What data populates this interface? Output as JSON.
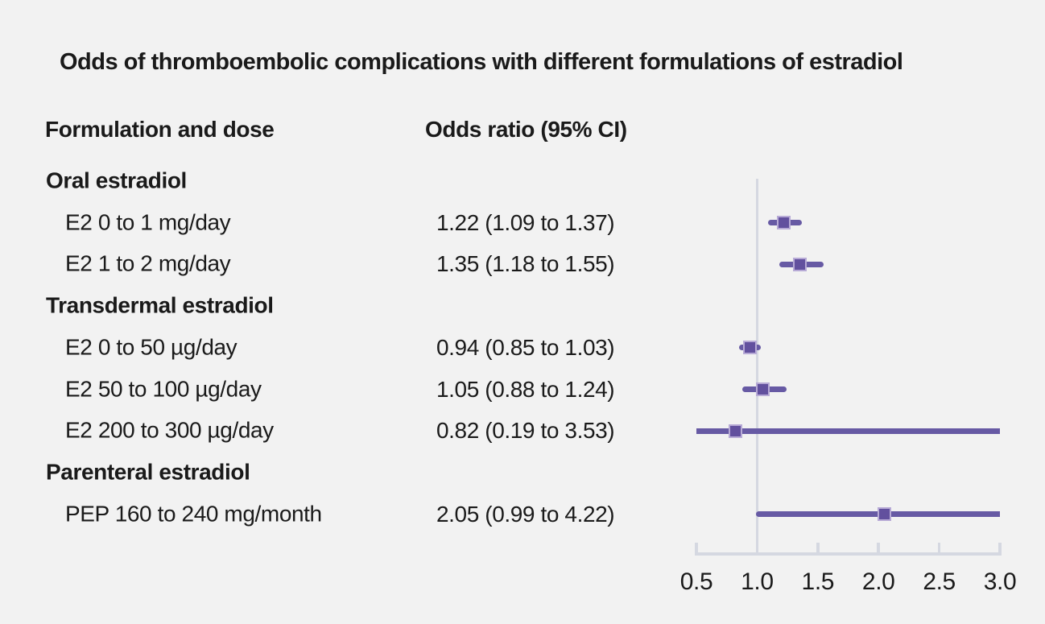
{
  "figure": {
    "title": "Odds of thromboembolic complications with different formulations of estradiol",
    "column_headers": {
      "formulation": "Formulation and dose",
      "odds_ratio": "Odds ratio (95% CI)"
    }
  },
  "colors": {
    "background": "#f2f2f2",
    "text": "#1a1a1a",
    "ci_line": "#675aa4",
    "marker_fill": "#62509e",
    "marker_border": "#b7aad6",
    "axis": "#d5d8e1"
  },
  "chart_data": {
    "type": "forest",
    "title": "Odds of thromboembolic complications with different formulations of estradiol",
    "xlabel": "",
    "x_axis": {
      "ticks": [
        0.5,
        1.0,
        1.5,
        2.0,
        2.5,
        3.0
      ],
      "range": [
        0.5,
        3.0
      ],
      "reference_line": 1.0,
      "grid": false
    },
    "groups": [
      {
        "label": "Oral estradiol",
        "items": [
          {
            "label": "E2 0 to 1 mg/day",
            "value_text": "1.22 (1.09 to 1.37)",
            "or": 1.22,
            "ci_low": 1.09,
            "ci_high": 1.37
          },
          {
            "label": "E2 1 to 2 mg/day",
            "value_text": "1.35 (1.18 to 1.55)",
            "or": 1.35,
            "ci_low": 1.18,
            "ci_high": 1.55
          }
        ]
      },
      {
        "label": "Transdermal estradiol",
        "items": [
          {
            "label": "E2 0 to 50 µg/day",
            "value_text": "0.94 (0.85 to 1.03)",
            "or": 0.94,
            "ci_low": 0.85,
            "ci_high": 1.03
          },
          {
            "label": "E2 50 to 100 µg/day",
            "value_text": "1.05 (0.88 to 1.24)",
            "or": 1.05,
            "ci_low": 0.88,
            "ci_high": 1.24
          },
          {
            "label": "E2 200 to 300 µg/day",
            "value_text": "0.82 (0.19 to 3.53)",
            "or": 0.82,
            "ci_low": 0.19,
            "ci_high": 3.53
          }
        ]
      },
      {
        "label": "Parenteral estradiol",
        "items": [
          {
            "label": "PEP 160 to 240 mg/month",
            "value_text": "2.05 (0.99 to 4.22)",
            "or": 2.05,
            "ci_low": 0.99,
            "ci_high": 4.22
          }
        ]
      }
    ]
  }
}
